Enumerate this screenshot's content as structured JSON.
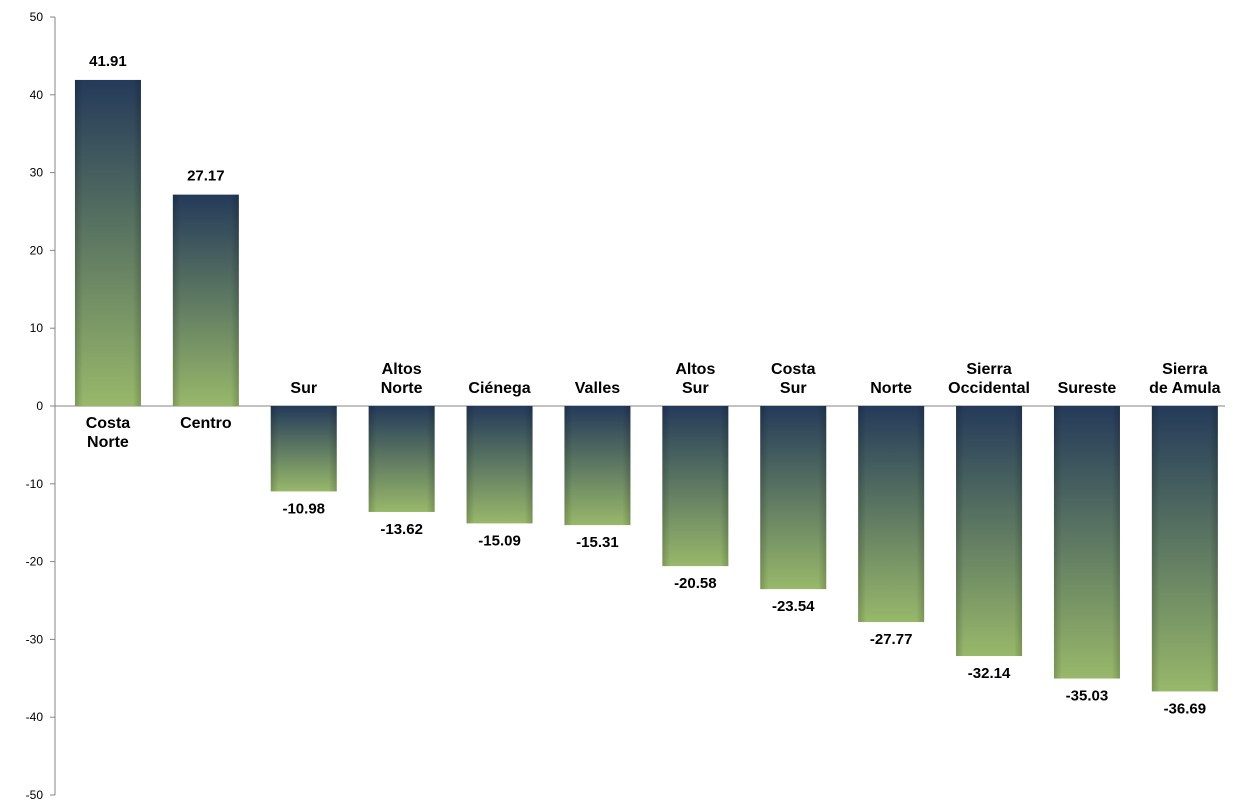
{
  "chart_data": {
    "type": "bar",
    "categories": [
      [
        "Costa",
        "Norte"
      ],
      [
        "Centro"
      ],
      [
        "Sur"
      ],
      [
        "Altos",
        "Norte"
      ],
      [
        "Ciénega"
      ],
      [
        "Valles"
      ],
      [
        "Altos",
        "Sur"
      ],
      [
        "Costa",
        "Sur"
      ],
      [
        "Norte"
      ],
      [
        "Sierra",
        "Occidental"
      ],
      [
        "Sureste"
      ],
      [
        "Sierra",
        "de Amula"
      ]
    ],
    "values": [
      41.91,
      27.17,
      -10.98,
      -13.62,
      -15.09,
      -15.31,
      -20.58,
      -23.54,
      -27.77,
      -32.14,
      -35.03,
      -36.69
    ],
    "value_labels": [
      "41.91",
      "27.17",
      "-10.98",
      "-13.62",
      "-15.09",
      "-15.31",
      "-20.58",
      "-23.54",
      "-27.77",
      "-32.14",
      "-35.03",
      "-36.69"
    ],
    "ylim": [
      -50,
      50
    ],
    "yticks": [
      50,
      40,
      30,
      20,
      10,
      0,
      -10,
      -20,
      -30,
      -40,
      -50
    ],
    "title": "",
    "xlabel": "",
    "ylabel": "",
    "grid": false,
    "colors": {
      "bar_top": "#243a5a",
      "bar_bottom": "#98b86a",
      "axis": "#868686"
    }
  }
}
